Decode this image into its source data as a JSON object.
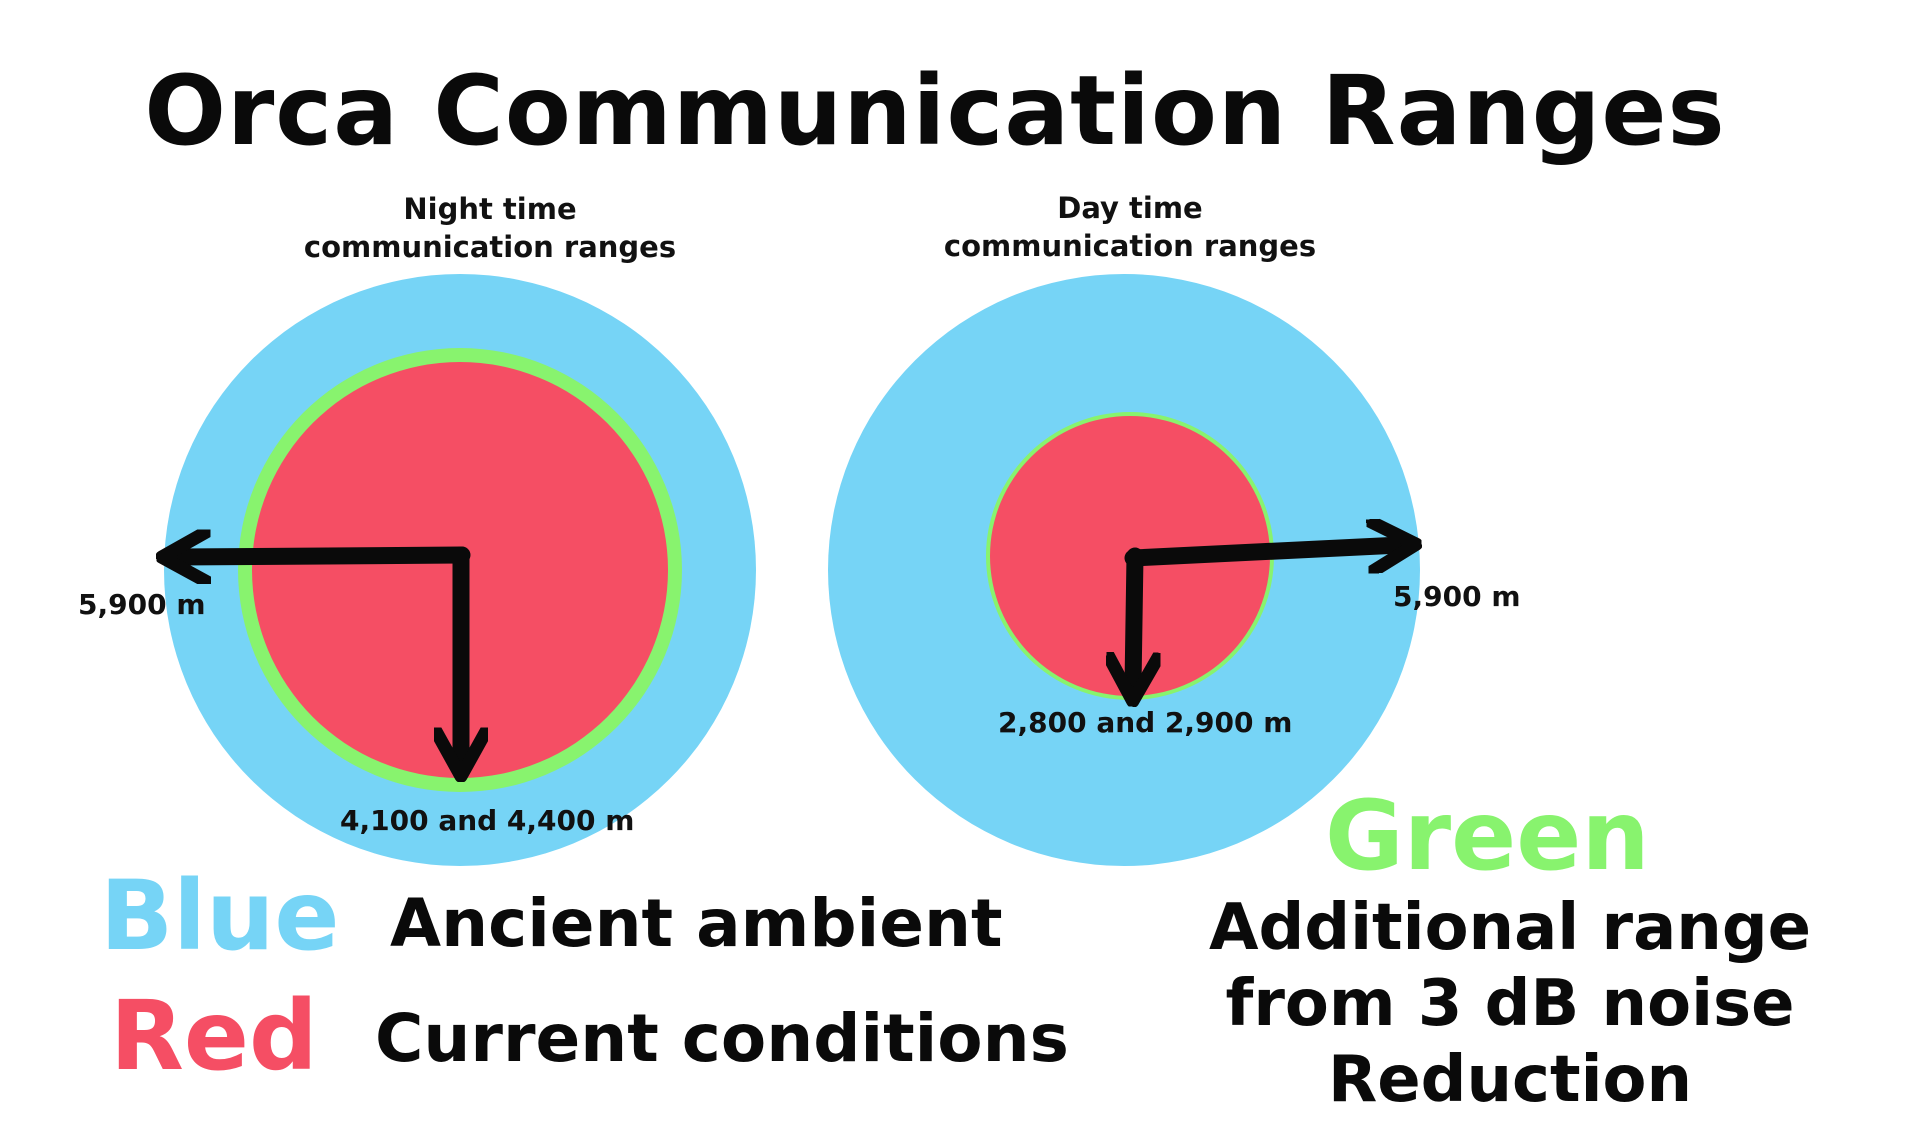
{
  "title": "Orca Communication Ranges",
  "night": {
    "caption_line1": "Night time",
    "caption_line2": "communication ranges",
    "outer_label": "5,900 m",
    "inner_label": "4,100 and 4,400 m"
  },
  "day": {
    "caption_line1": "Day time",
    "caption_line2": "communication ranges",
    "outer_label": "5,900 m",
    "inner_label": "2,800 and 2,900 m"
  },
  "legend": {
    "blue_word": "Blue",
    "blue_text": "Ancient ambient",
    "red_word": "Red",
    "red_text": "Current conditions",
    "green_word": "Green",
    "green_line1": "Additional range",
    "green_line2": "from 3 dB noise",
    "green_line3": "Reduction"
  },
  "colors": {
    "blue": "#76d4f6",
    "red": "#f54e64",
    "green": "#88f36e",
    "arrow": "#0a0a0a"
  }
}
